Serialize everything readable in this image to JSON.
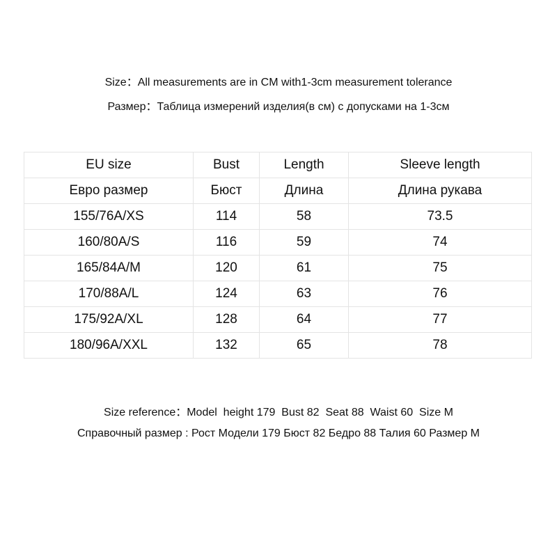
{
  "header": {
    "line_en": "Size：All measurements are in CM with1-3cm measurement tolerance",
    "line_ru": "Размер：Таблица измерений изделия(в см) с допусками на 1-3см"
  },
  "table": {
    "headers_en": [
      "EU size",
      "Bust",
      "Length",
      "Sleeve length"
    ],
    "headers_ru": [
      "Евро размер",
      "Бюст",
      "Длина",
      "Длина рукава"
    ],
    "rows": [
      [
        "155/76A/XS",
        "114",
        "58",
        "73.5"
      ],
      [
        "160/80A/S",
        "116",
        "59",
        "74"
      ],
      [
        "165/84A/M",
        "120",
        "61",
        "75"
      ],
      [
        "170/88A/L",
        "124",
        "63",
        "76"
      ],
      [
        "175/92A/XL",
        "128",
        "64",
        "77"
      ],
      [
        "180/96A/XXL",
        "132",
        "65",
        "78"
      ]
    ]
  },
  "footer": {
    "line_en": "Size reference：Model  height 179  Bust 82  Seat 88  Waist 60  Size M",
    "line_ru": "Справочный размер : Рост Модели 179 Бюст 82 Бедро 88 Талия 60 Размер M"
  }
}
